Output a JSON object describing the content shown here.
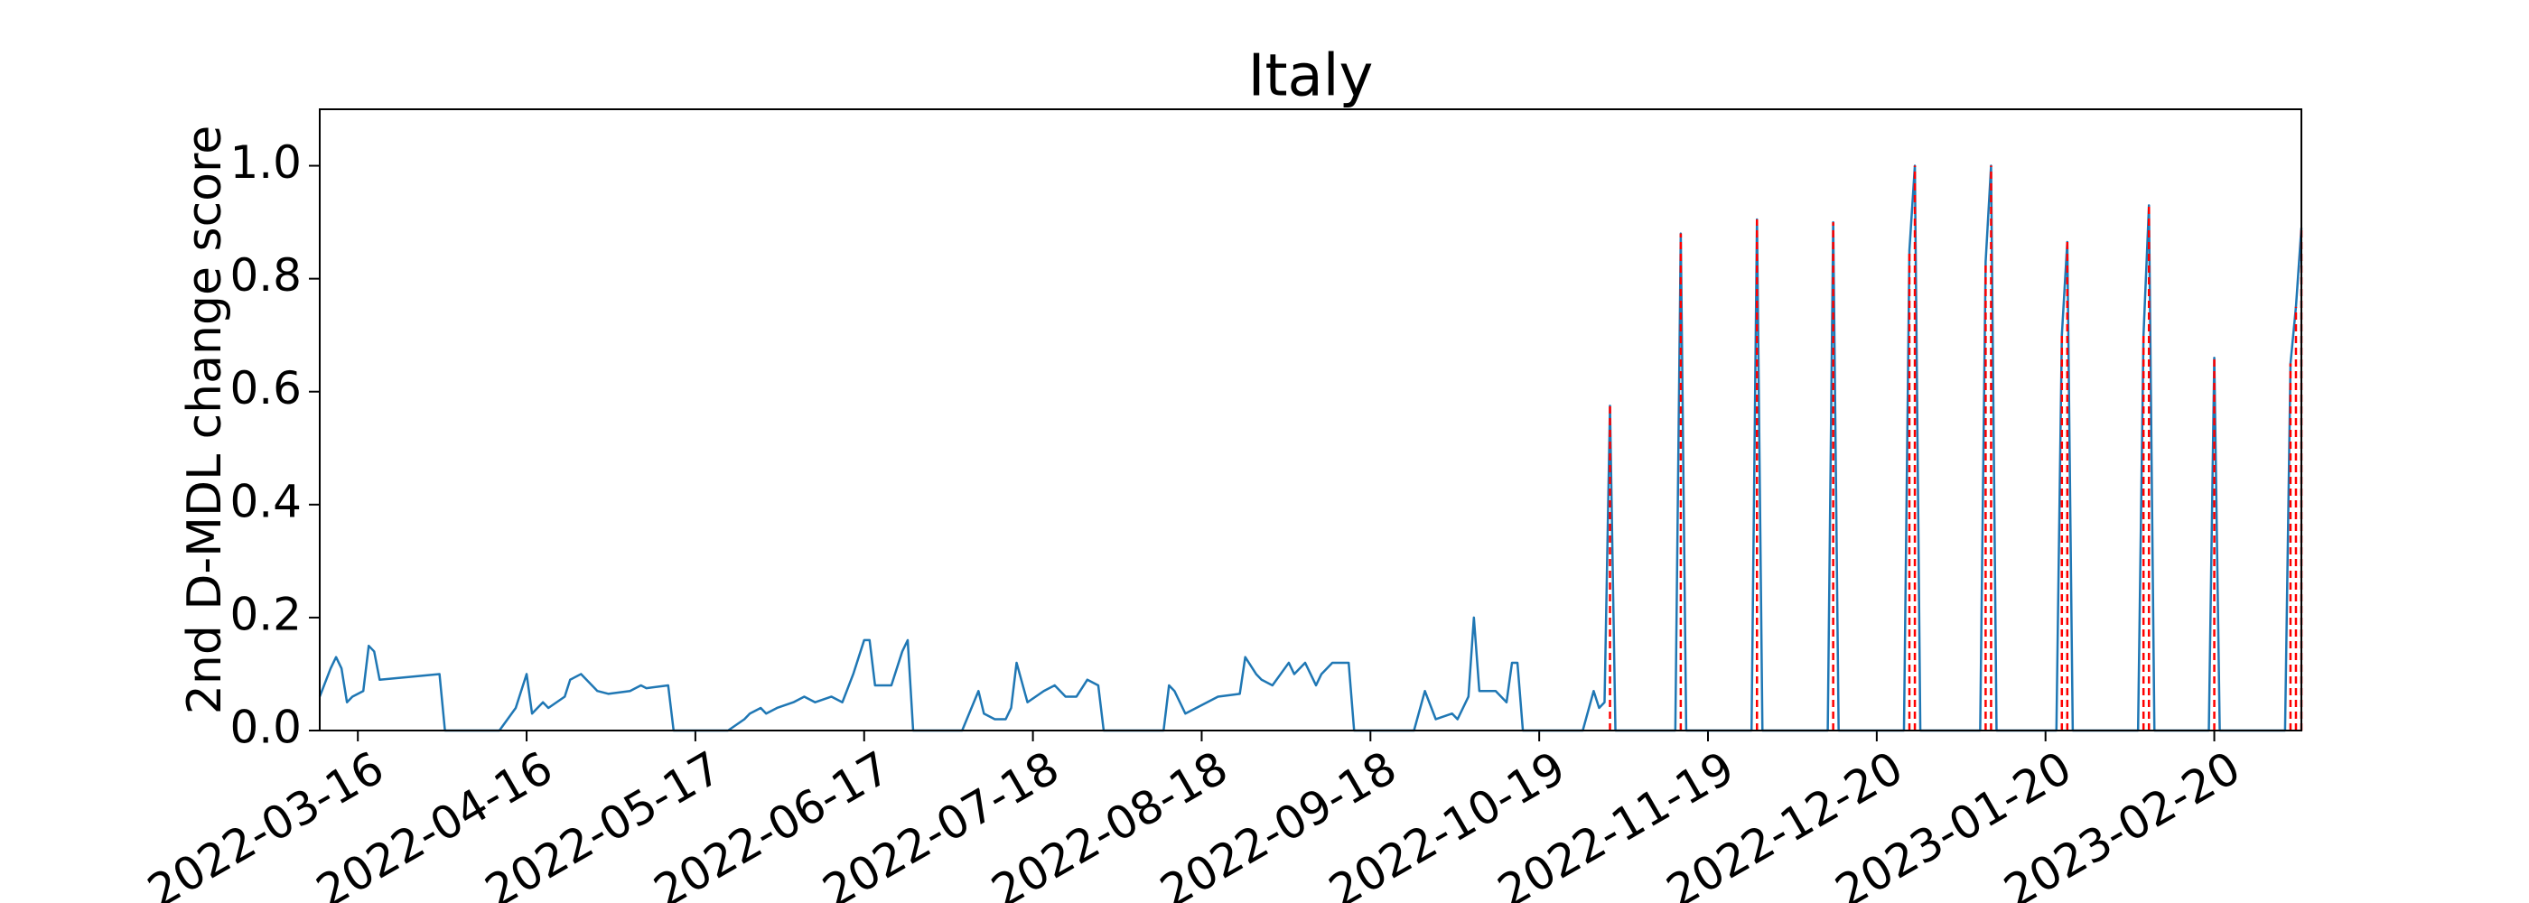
{
  "chart_data": {
    "type": "line",
    "title": "Italy",
    "y_label": "2nd D-MDL change score",
    "color": "#1f77b4",
    "alarm_color": "#ff0000",
    "xlim": [
      "2022-03-09",
      "2023-03-08"
    ],
    "xticks": [
      "2022-03-16",
      "2022-04-16",
      "2022-05-17",
      "2022-06-17",
      "2022-07-18",
      "2022-08-18",
      "2022-09-18",
      "2022-10-19",
      "2022-11-19",
      "2022-12-20",
      "2023-01-20",
      "2023-02-20"
    ],
    "ylim": [
      0,
      1.1
    ],
    "yticks": [
      {
        "value": 0,
        "label": "0.0"
      },
      0.2,
      0.4,
      0.6,
      0.8,
      {
        "value": 1,
        "label": "1.0"
      }
    ],
    "grid": false,
    "x": [
      "2022-03-09",
      "2022-03-11",
      "2022-03-12",
      "2022-03-13",
      "2022-03-14",
      "2022-03-15",
      "2022-03-17",
      "2022-03-18",
      "2022-03-19",
      "2022-03-20",
      "2022-03-31",
      "2022-04-01",
      "2022-04-11",
      "2022-04-14",
      "2022-04-16",
      "2022-04-17",
      "2022-04-19",
      "2022-04-20",
      "2022-04-23",
      "2022-04-24",
      "2022-04-26",
      "2022-04-29",
      "2022-05-01",
      "2022-05-05",
      "2022-05-07",
      "2022-05-08",
      "2022-05-12",
      "2022-05-13",
      "2022-05-23",
      "2022-05-26",
      "2022-05-27",
      "2022-05-29",
      "2022-05-30",
      "2022-06-01",
      "2022-06-04",
      "2022-06-06",
      "2022-06-08",
      "2022-06-11",
      "2022-06-13",
      "2022-06-15",
      "2022-06-17",
      "2022-06-18",
      "2022-06-19",
      "2022-06-22",
      "2022-06-24",
      "2022-06-25",
      "2022-06-26",
      "2022-07-05",
      "2022-07-08",
      "2022-07-09",
      "2022-07-11",
      "2022-07-13",
      "2022-07-14",
      "2022-07-15",
      "2022-07-17",
      "2022-07-20",
      "2022-07-22",
      "2022-07-24",
      "2022-07-26",
      "2022-07-28",
      "2022-07-30",
      "2022-07-31",
      "2022-08-11",
      "2022-08-12",
      "2022-08-13",
      "2022-08-15",
      "2022-08-17",
      "2022-08-19",
      "2022-08-21",
      "2022-08-25",
      "2022-08-26",
      "2022-08-28",
      "2022-08-29",
      "2022-08-31",
      "2022-09-03",
      "2022-09-04",
      "2022-09-06",
      "2022-09-08",
      "2022-09-09",
      "2022-09-11",
      "2022-09-14",
      "2022-09-15",
      "2022-09-26",
      "2022-09-28",
      "2022-09-30",
      "2022-10-03",
      "2022-10-04",
      "2022-10-06",
      "2022-10-07",
      "2022-10-08",
      "2022-10-11",
      "2022-10-13",
      "2022-10-14",
      "2022-10-15",
      "2022-10-16",
      "2022-10-27",
      "2022-10-29",
      "2022-10-30",
      "2022-10-31",
      "2022-11-01",
      "2022-11-02",
      "2022-11-13",
      "2022-11-14",
      "2022-11-15",
      "2022-11-27",
      "2022-11-28",
      "2022-11-29",
      "2022-12-11",
      "2022-12-12",
      "2022-12-13",
      "2022-12-25",
      "2022-12-26",
      "2022-12-27",
      "2022-12-28",
      "2023-01-08",
      "2023-01-09",
      "2023-01-10",
      "2023-01-11",
      "2023-01-22",
      "2023-01-23",
      "2023-01-24",
      "2023-01-25",
      "2023-02-06",
      "2023-02-07",
      "2023-02-08",
      "2023-02-09",
      "2023-02-19",
      "2023-02-20",
      "2023-02-21",
      "2023-03-05",
      "2023-03-06",
      "2023-03-07",
      "2023-03-08"
    ],
    "values": [
      0.06,
      0.11,
      0.13,
      0.11,
      0.05,
      0.06,
      0.07,
      0.15,
      0.14,
      0.09,
      0.1,
      0,
      0,
      0.04,
      0.1,
      0.03,
      0.05,
      0.04,
      0.06,
      0.09,
      0.1,
      0.07,
      0.065,
      0.07,
      0.08,
      0.075,
      0.08,
      0,
      0,
      0.02,
      0.03,
      0.04,
      0.03,
      0.04,
      0.05,
      0.06,
      0.05,
      0.06,
      0.05,
      0.1,
      0.16,
      0.16,
      0.08,
      0.08,
      0.14,
      0.16,
      0,
      0,
      0.07,
      0.03,
      0.02,
      0.02,
      0.04,
      0.12,
      0.05,
      0.07,
      0.08,
      0.06,
      0.06,
      0.09,
      0.08,
      0,
      0,
      0.08,
      0.07,
      0.03,
      0.04,
      0.05,
      0.06,
      0.065,
      0.13,
      0.1,
      0.09,
      0.08,
      0.12,
      0.1,
      0.12,
      0.08,
      0.1,
      0.12,
      0.12,
      0,
      0,
      0.07,
      0.02,
      0.03,
      0.02,
      0.06,
      0.2,
      0.07,
      0.07,
      0.05,
      0.12,
      0.12,
      0,
      0,
      0.07,
      0.04,
      0.05,
      0.575,
      0,
      0,
      0.88,
      0,
      0,
      0.905,
      0,
      0,
      0.9,
      0,
      0,
      0.85,
      1.0,
      0,
      0,
      0.83,
      1.0,
      0,
      0,
      0.7,
      0.865,
      0,
      0,
      0.7,
      0.93,
      0,
      0,
      0.66,
      0,
      0,
      0.65,
      0.75,
      0.89
    ],
    "alarms": [
      "2022-11-01",
      "2022-11-14",
      "2022-11-28",
      "2022-12-12",
      "2022-12-26",
      "2022-12-27",
      "2023-01-09",
      "2023-01-10",
      "2023-01-23",
      "2023-01-24",
      "2023-02-07",
      "2023-02-08",
      "2023-02-20",
      "2023-03-06",
      "2023-03-07",
      "2023-03-08"
    ]
  }
}
